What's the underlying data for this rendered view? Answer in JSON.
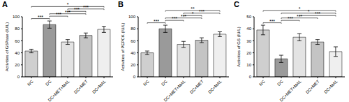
{
  "chart_data": [
    {
      "type": "bar",
      "title": "A",
      "y_label": "Activities of G6Pase (IU/L)",
      "categories": [
        "NC",
        "DC",
        "DC+MET+MAL",
        "DC+MET",
        "DC+MAL"
      ],
      "values": [
        43,
        87,
        58,
        69,
        79
      ],
      "errors": [
        3,
        6,
        4,
        4,
        5
      ],
      "colors": [
        "#cfcfcf",
        "#9a9a9a",
        "#e3e3e3",
        "#c4c4c4",
        "#efefef"
      ],
      "ylim": [
        0,
        100
      ],
      "yticks": [
        0,
        20,
        40,
        60,
        80,
        100
      ],
      "annotations": [
        {
          "from": "NC",
          "to": "DC",
          "label": "***"
        },
        {
          "from": "DC",
          "to": "DC+MET+MAL",
          "label": "***"
        },
        {
          "from": "DC",
          "to": "DC+MET",
          "label": "***"
        },
        {
          "from": "DC+MET+MAL",
          "to": "DC+MET",
          "label": "***"
        },
        {
          "from": "DC+MET+MAL",
          "to": "DC+MAL",
          "label": "***"
        },
        {
          "from": "NC",
          "to": "DC+MAL",
          "label": "*"
        }
      ]
    },
    {
      "type": "bar",
      "title": "B",
      "y_label": "Activities of PEPCK (IU/L)",
      "categories": [
        "NC",
        "DC",
        "DC+MET+MAL",
        "DC+MET",
        "DC+MAL"
      ],
      "values": [
        40,
        80,
        54,
        61,
        71
      ],
      "errors": [
        3,
        6,
        5,
        4,
        4
      ],
      "colors": [
        "#cfcfcf",
        "#9a9a9a",
        "#e3e3e3",
        "#c4c4c4",
        "#efefef"
      ],
      "ylim": [
        0,
        100
      ],
      "yticks": [
        0,
        20,
        40,
        60,
        80,
        100
      ],
      "annotations": [
        {
          "from": "NC",
          "to": "DC",
          "label": "***"
        },
        {
          "from": "DC",
          "to": "DC+MET+MAL",
          "label": "***"
        },
        {
          "from": "DC",
          "to": "DC+MET",
          "label": "***"
        },
        {
          "from": "DC+MET+MAL",
          "to": "DC+MET",
          "label": "*"
        },
        {
          "from": "DC+MET+MAL",
          "to": "DC+MAL",
          "label": "***"
        },
        {
          "from": "DC",
          "to": "DC+MAL",
          "label": "**"
        }
      ]
    },
    {
      "type": "bar",
      "title": "C",
      "y_label": "Activities of GS (IU/L)",
      "categories": [
        "NC",
        "DC",
        "DC+MET+MAL",
        "DC+MET",
        "DC+MAL"
      ],
      "values": [
        39,
        15,
        33,
        29,
        21
      ],
      "errors": [
        4,
        3,
        3,
        2,
        4
      ],
      "colors": [
        "#cfcfcf",
        "#9a9a9a",
        "#e3e3e3",
        "#c4c4c4",
        "#efefef"
      ],
      "ylim": [
        0,
        50
      ],
      "yticks": [
        0,
        10,
        20,
        30,
        40,
        50
      ],
      "annotations": [
        {
          "from": "NC",
          "to": "DC",
          "label": "***"
        },
        {
          "from": "DC",
          "to": "DC+MET+MAL",
          "label": "***"
        },
        {
          "from": "DC",
          "to": "DC+MET",
          "label": "***"
        },
        {
          "from": "DC+MET+MAL",
          "to": "DC+MAL",
          "label": "***"
        },
        {
          "from": "DC",
          "to": "DC+MAL",
          "label": "*"
        },
        {
          "from": "NC",
          "to": "DC+MAL",
          "label": "*"
        }
      ]
    }
  ]
}
